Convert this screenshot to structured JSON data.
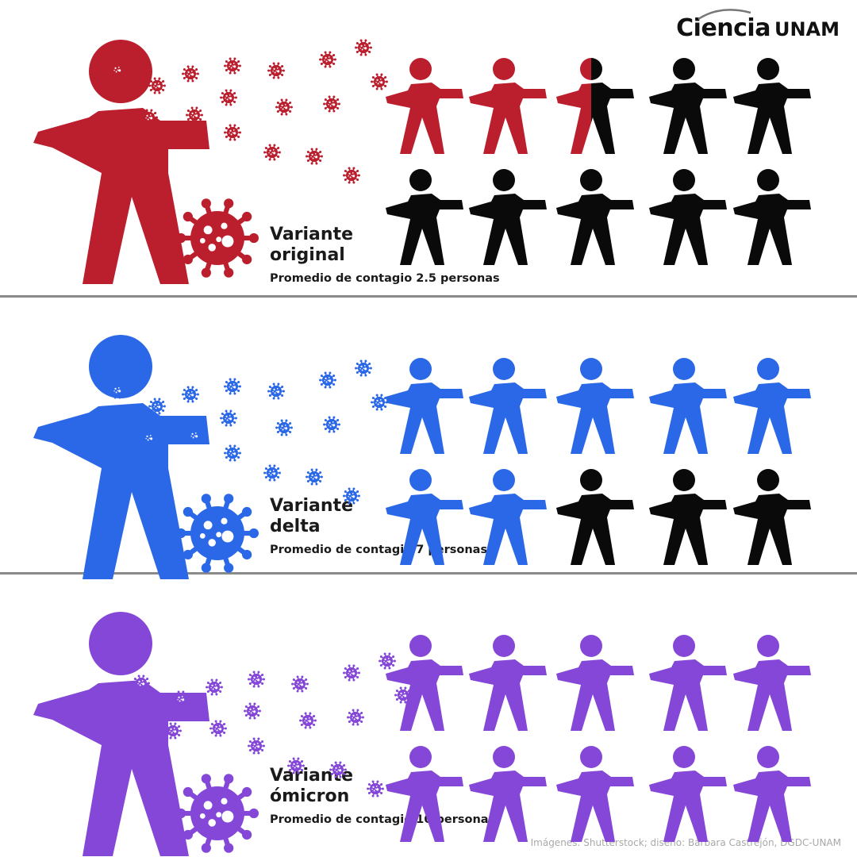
{
  "brand": {
    "name": "Ciencia",
    "org": "UNAM"
  },
  "credit": "Imágenes: Shutterstock; diseño: Bárbara Castrejón, DGDC-UNAM",
  "colors": {
    "inactive": "#0a0a0a",
    "divider": "#8a8a8a"
  },
  "total_people": 10,
  "variants": [
    {
      "label_line1": "Variante",
      "label_line2": "original",
      "average_text": "Promedio de contagio 2.5 personas",
      "infected": 2.5,
      "color": "#bb1f2e"
    },
    {
      "label_line1": "Variante",
      "label_line2": "delta",
      "average_text": "Promedio de contagio 7 personas",
      "infected": 7,
      "color": "#2b68e8"
    },
    {
      "label_line1": "Variante",
      "label_line2": "ómicron",
      "average_text": "Promedio de contagio 10 personas",
      "infected": 10,
      "color": "#8447d8"
    }
  ]
}
